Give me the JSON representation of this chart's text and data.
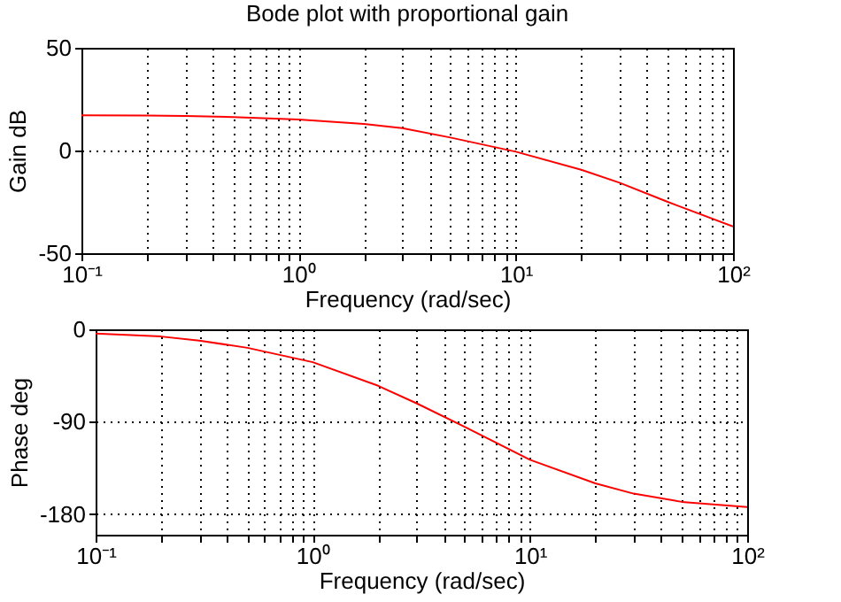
{
  "chart_data": [
    {
      "type": "line",
      "title": "Bode plot with proportional gain",
      "xlabel": "Frequency (rad/sec)",
      "ylabel": "Gain dB",
      "log": "x",
      "grid": true,
      "x": [
        0.1,
        0.2,
        0.3,
        0.5,
        1,
        2,
        3,
        5,
        10,
        20,
        30,
        50,
        100
      ],
      "series": [
        {
          "color": "#ff0000",
          "values": [
            17.1,
            17,
            16.8,
            16.3,
            15.1,
            12.9,
            10.9,
            6.3,
            -0.6,
            -9.4,
            -15.7,
            -25,
            -37
          ]
        }
      ],
      "xlim": [
        0.1,
        100
      ],
      "ylim": [
        -50,
        50
      ],
      "xticks": [
        {
          "value": 0.1,
          "label": "10⁻¹"
        },
        {
          "value": 0.2,
          "label": null
        },
        {
          "value": 0.3,
          "label": null
        },
        {
          "value": 0.4,
          "label": null
        },
        {
          "value": 0.5,
          "label": null
        },
        {
          "value": 0.6,
          "label": null
        },
        {
          "value": 0.7,
          "label": null
        },
        {
          "value": 0.8,
          "label": null
        },
        {
          "value": 0.9,
          "label": null
        },
        {
          "value": 1,
          "label": "10⁰"
        },
        {
          "value": 2,
          "label": null
        },
        {
          "value": 3,
          "label": null
        },
        {
          "value": 4,
          "label": null
        },
        {
          "value": 5,
          "label": null
        },
        {
          "value": 6,
          "label": null
        },
        {
          "value": 7,
          "label": null
        },
        {
          "value": 8,
          "label": null
        },
        {
          "value": 9,
          "label": null
        },
        {
          "value": 10,
          "label": "10¹"
        },
        {
          "value": 20,
          "label": null
        },
        {
          "value": 30,
          "label": null
        },
        {
          "value": 40,
          "label": null
        },
        {
          "value": 50,
          "label": null
        },
        {
          "value": 60,
          "label": null
        },
        {
          "value": 70,
          "label": null
        },
        {
          "value": 80,
          "label": null
        },
        {
          "value": 90,
          "label": null
        },
        {
          "value": 100,
          "label": "10²"
        }
      ],
      "yticks": [
        -50,
        0,
        50
      ]
    },
    {
      "type": "line",
      "xlabel": "Frequency (rad/sec)",
      "ylabel": "Phase deg",
      "log": "x",
      "grid": true,
      "x": [
        0.1,
        0.2,
        0.3,
        0.5,
        1,
        2,
        3,
        5,
        10,
        20,
        30,
        50,
        100
      ],
      "series": [
        {
          "color": "#ff0000",
          "values": [
            -4,
            -7,
            -11,
            -18,
            -32,
            -55,
            -72,
            -95,
            -127,
            -150,
            -160,
            -168,
            -173
          ]
        }
      ],
      "xlim": [
        0.1,
        100
      ],
      "ylim": [
        -200,
        0
      ],
      "xticks": [
        {
          "value": 0.1,
          "label": "10⁻¹"
        },
        {
          "value": 0.2,
          "label": null
        },
        {
          "value": 0.3,
          "label": null
        },
        {
          "value": 0.4,
          "label": null
        },
        {
          "value": 0.5,
          "label": null
        },
        {
          "value": 0.6,
          "label": null
        },
        {
          "value": 0.7,
          "label": null
        },
        {
          "value": 0.8,
          "label": null
        },
        {
          "value": 0.9,
          "label": null
        },
        {
          "value": 1,
          "label": "10⁰"
        },
        {
          "value": 2,
          "label": null
        },
        {
          "value": 3,
          "label": null
        },
        {
          "value": 4,
          "label": null
        },
        {
          "value": 5,
          "label": null
        },
        {
          "value": 6,
          "label": null
        },
        {
          "value": 7,
          "label": null
        },
        {
          "value": 8,
          "label": null
        },
        {
          "value": 9,
          "label": null
        },
        {
          "value": 10,
          "label": "10¹"
        },
        {
          "value": 20,
          "label": null
        },
        {
          "value": 30,
          "label": null
        },
        {
          "value": 40,
          "label": null
        },
        {
          "value": 50,
          "label": null
        },
        {
          "value": 60,
          "label": null
        },
        {
          "value": 70,
          "label": null
        },
        {
          "value": 80,
          "label": null
        },
        {
          "value": 90,
          "label": null
        },
        {
          "value": 100,
          "label": "10²"
        }
      ],
      "yticks": [
        -180,
        -90,
        0
      ]
    }
  ]
}
